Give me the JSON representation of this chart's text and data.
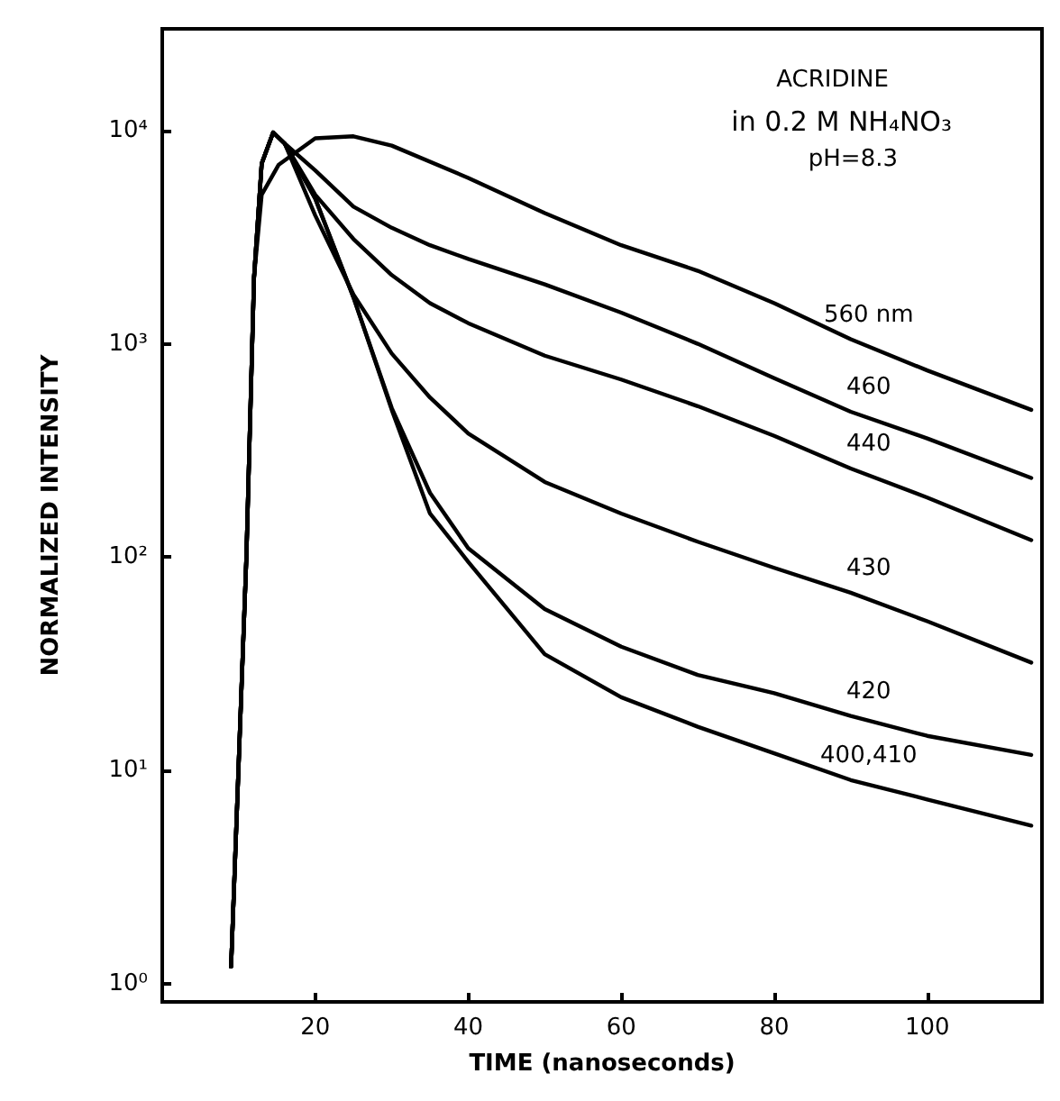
{
  "chart_data": {
    "type": "line",
    "xlabel": "TIME (nanoseconds)",
    "ylabel": "NORMALIZED INTENSITY",
    "annotations": [
      "ACRIDINE",
      "in 0.2 M NH₄NO₃",
      "pH=8.3"
    ],
    "log": "y",
    "grid": false,
    "legend": false,
    "marker": "none",
    "line_style": "solid",
    "xlim": [
      0,
      115
    ],
    "xticks": [
      20,
      40,
      60,
      80,
      100
    ],
    "ylim": [
      0.82,
      30000
    ],
    "yticks": [
      {
        "value": 1,
        "label": "10⁰"
      },
      {
        "value": 10,
        "label": "10¹"
      },
      {
        "value": 100,
        "label": "10²"
      },
      {
        "value": 1000,
        "label": "10³"
      },
      {
        "value": 10000,
        "label": "10⁴"
      }
    ],
    "series": [
      {
        "name": "560 nm",
        "color": "#000000",
        "x": [
          9,
          11,
          12,
          13,
          15.2,
          20,
          25,
          30,
          40,
          50,
          60,
          70,
          80,
          90,
          100,
          113.6
        ],
        "values": [
          1.2,
          100,
          2050,
          5000,
          6900,
          9200,
          9400,
          8500,
          6000,
          4100,
          2900,
          2200,
          1550,
          1050,
          750,
          490
        ]
      },
      {
        "name": "460",
        "color": "#000000",
        "x": [
          9,
          11,
          12,
          13,
          14.5,
          16,
          20,
          25,
          30,
          35,
          40,
          50,
          60,
          70,
          80,
          90,
          100,
          113.6
        ],
        "values": [
          1.2,
          100,
          2050,
          7000,
          9800,
          8700,
          6500,
          4400,
          3500,
          2900,
          2500,
          1900,
          1400,
          1000,
          690,
          480,
          360,
          235
        ]
      },
      {
        "name": "440",
        "color": "#000000",
        "x": [
          9,
          11,
          12,
          13,
          14.5,
          16,
          20,
          25,
          30,
          35,
          40,
          50,
          60,
          70,
          80,
          90,
          100,
          113.6
        ],
        "values": [
          1.2,
          100,
          2050,
          7000,
          9800,
          8700,
          5000,
          3100,
          2100,
          1550,
          1250,
          880,
          680,
          510,
          370,
          260,
          190,
          120
        ]
      },
      {
        "name": "430",
        "color": "#000000",
        "x": [
          9,
          11,
          12,
          13,
          14.5,
          16,
          20,
          25,
          30,
          35,
          40,
          50,
          60,
          70,
          80,
          90,
          100,
          113.6
        ],
        "values": [
          1.2,
          100,
          2050,
          7000,
          9800,
          8700,
          4000,
          1700,
          900,
          560,
          380,
          225,
          160,
          118,
          89,
          68,
          50,
          32
        ]
      },
      {
        "name": "420",
        "color": "#000000",
        "x": [
          9,
          11,
          12,
          13,
          14.5,
          16,
          20,
          25,
          30,
          35,
          40,
          50,
          60,
          70,
          80,
          90,
          100,
          113.6
        ],
        "values": [
          1.2,
          100,
          2050,
          7000,
          9800,
          8700,
          4800,
          1650,
          500,
          200,
          110,
          57,
          38,
          28,
          23,
          18,
          14.5,
          11.8
        ]
      },
      {
        "name": "400,410",
        "color": "#000000",
        "x": [
          9,
          11,
          12,
          13,
          14.5,
          16,
          20,
          25,
          30,
          35,
          40,
          50,
          60,
          70,
          80,
          90,
          100,
          113.6
        ],
        "values": [
          1.2,
          100,
          2050,
          7000,
          9800,
          8700,
          4800,
          1650,
          490,
          160,
          95,
          35,
          22,
          16,
          12,
          9,
          7.3,
          5.5
        ]
      }
    ]
  }
}
